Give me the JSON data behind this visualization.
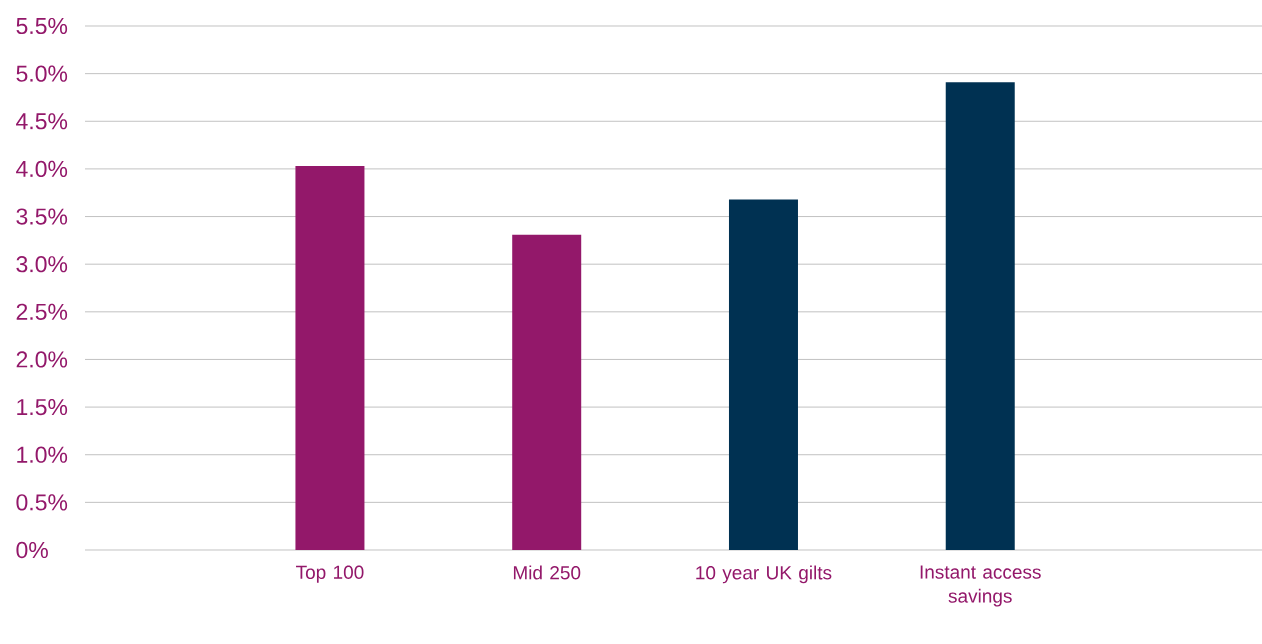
{
  "chart_data": {
    "type": "bar",
    "categories": [
      "Top 100",
      "Mid 250",
      "10 year UK gilts",
      "Instant access savings"
    ],
    "values": [
      4.03,
      3.31,
      3.68,
      4.91
    ],
    "colors": [
      "#93186a",
      "#93186a",
      "#003152",
      "#003152"
    ],
    "ylim": [
      0,
      5.5
    ],
    "yticks": [
      {
        "value": 0,
        "label": "0%"
      },
      {
        "value": 0.5,
        "label": "0.5%"
      },
      {
        "value": 1,
        "label": "1.0%"
      },
      {
        "value": 1.5,
        "label": "1.5%"
      },
      {
        "value": 2,
        "label": "2.0%"
      },
      {
        "value": 2.5,
        "label": "2.5%"
      },
      {
        "value": 3,
        "label": "3.0%"
      },
      {
        "value": 3.5,
        "label": "3.5%"
      },
      {
        "value": 4,
        "label": "4.0%"
      },
      {
        "value": 4.5,
        "label": "4.5%"
      },
      {
        "value": 5,
        "label": "5.0%"
      },
      {
        "value": 5.5,
        "label": "5.5%"
      }
    ],
    "grid": "y"
  }
}
